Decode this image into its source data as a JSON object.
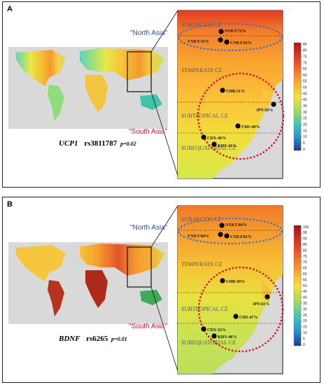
{
  "panelA": {
    "label": "A",
    "gene": "UCP1",
    "snp": "rs3811787",
    "pvalue": "p=0.02",
    "legend_ticks": [
      "85",
      "80",
      "75",
      "70",
      "65",
      "60",
      "55",
      "50",
      "45",
      "40",
      "35",
      "30",
      "25",
      "20",
      "15",
      "10",
      "5",
      "0"
    ],
    "zones": [
      "SUBARCTIC CZ",
      "TEMPERATE CZ",
      "SUBTROPICAL CZ",
      "SUBEQUATORIAL CZ"
    ],
    "regions": {
      "north": "\"North Asia\"",
      "south": "\"South Asia\""
    },
    "points": [
      {
        "label": "NYKT-72%"
      },
      {
        "label": "VYKT-55%"
      },
      {
        "label": "CYKT-61%"
      },
      {
        "label": "CHB-51%"
      },
      {
        "label": "JPT-56%"
      },
      {
        "label": "CHS-49%"
      },
      {
        "label": "CDX-46%"
      },
      {
        "label": "KHV-41%"
      }
    ]
  },
  "panelB": {
    "label": "B",
    "gene": "BDNF",
    "snp": "rs6265",
    "pvalue": "p=0.01",
    "legend_ticks": [
      "100",
      "95",
      "90",
      "85",
      "80",
      "75",
      "70",
      "65",
      "60",
      "55",
      "50",
      "45",
      "40",
      "35",
      "30",
      "25",
      "20",
      "15",
      "10",
      "5",
      "0"
    ],
    "zones": [
      "SUBARCTIC CZ",
      "TEMPERATE CZ",
      "SUBTROPICAL CZ",
      "SUBEQUATORIAL CZ"
    ],
    "regions": {
      "north": "\"North Asia\"",
      "south": "\"South Asia\""
    },
    "points": [
      {
        "label": "NYKT-64%"
      },
      {
        "label": "VYKT-84%"
      },
      {
        "label": "CYKT-81%"
      },
      {
        "label": "CHB-50%"
      },
      {
        "label": "JPT-61%"
      },
      {
        "label": "CHS-47%"
      },
      {
        "label": "CDX-52%"
      },
      {
        "label": "KHV-46%"
      }
    ]
  },
  "colors": {
    "north_circle": "#4a6fb5",
    "south_circle": "#e0142c",
    "ocean": "#d9d9d9",
    "box": "#111111"
  }
}
